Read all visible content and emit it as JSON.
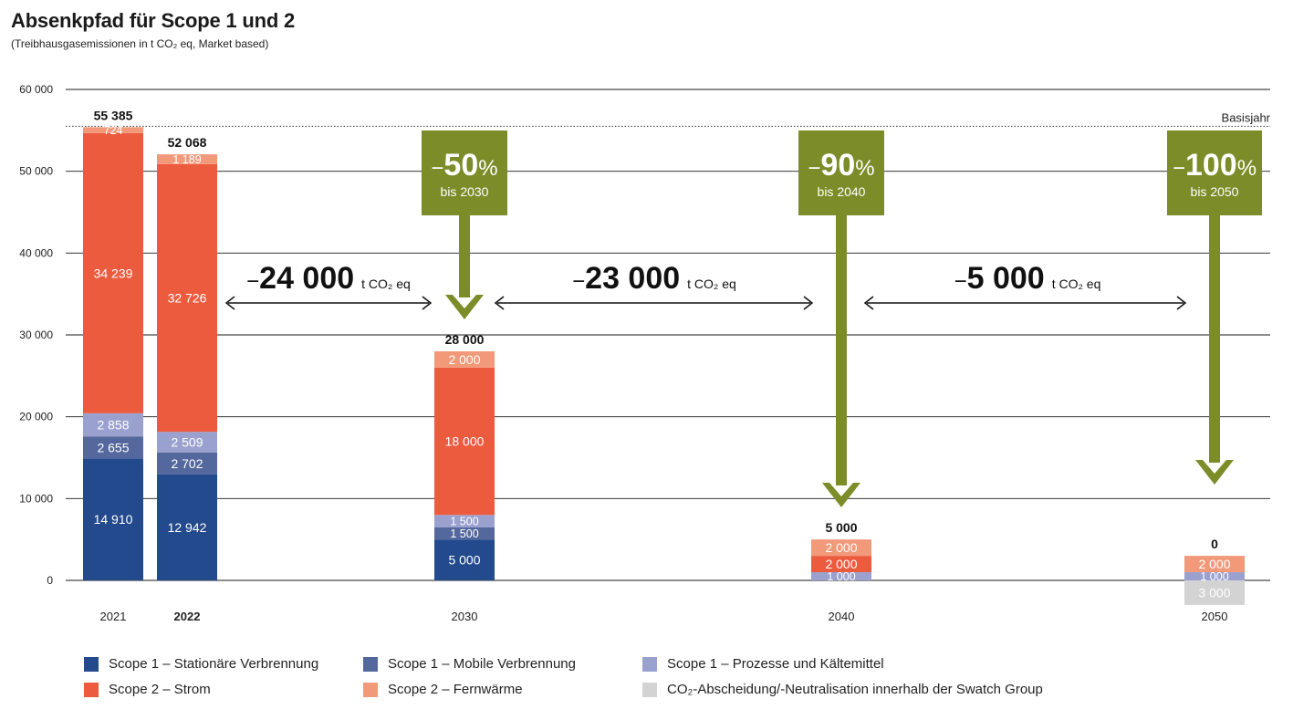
{
  "chart_data": {
    "type": "bar",
    "stacked": true,
    "title": "Absenkpfad für Scope 1 und 2",
    "subtitle": "(Treibhausgasemissionen in t CO₂ eq, Market based)",
    "xlabel": "",
    "ylabel": "",
    "ylim": [
      -3000,
      60000
    ],
    "yticks": [
      0,
      10000,
      20000,
      30000,
      40000,
      50000,
      60000
    ],
    "ytick_labels": [
      "0",
      "10 000",
      "20 000",
      "30 000",
      "40 000",
      "50 000",
      "60 000"
    ],
    "grid": true,
    "legend_position": "bottom",
    "categories": [
      "2021",
      "2022",
      "2030",
      "2040",
      "2050"
    ],
    "highlight_category": "2022",
    "totals": [
      55385,
      52068,
      28000,
      5000,
      0
    ],
    "total_labels": [
      "55 385",
      "52 068",
      "28 000",
      "5 000",
      "0"
    ],
    "series": [
      {
        "name": "Scope 1 – Stationäre Verbrennung",
        "color": "#234a8c",
        "values": [
          14910,
          12942,
          5000,
          0,
          0
        ],
        "labels": [
          "14 910",
          "12 942",
          "5 000",
          "",
          ""
        ]
      },
      {
        "name": "Scope 1 – Mobile Verbrennung",
        "color": "#55689e",
        "values": [
          2655,
          2702,
          1500,
          0,
          0
        ],
        "labels": [
          "2 655",
          "2 702",
          "1 500",
          "",
          ""
        ]
      },
      {
        "name": "Scope 1 – Prozesse und Kältemittel",
        "color": "#9ba1cf",
        "values": [
          2858,
          2509,
          1500,
          1000,
          1000
        ],
        "labels": [
          "2 858",
          "2 509",
          "1 500",
          "1 000",
          "1 000"
        ]
      },
      {
        "name": "Scope 2 – Strom",
        "color": "#ed5b3f",
        "values": [
          34239,
          32726,
          18000,
          2000,
          0
        ],
        "labels": [
          "34 239",
          "32 726",
          "18 000",
          "2 000",
          ""
        ]
      },
      {
        "name": "Scope 2 – Fernwärme",
        "color": "#f2997a",
        "values": [
          724,
          1189,
          2000,
          2000,
          2000
        ],
        "labels": [
          "724",
          "1 189",
          "2 000",
          "2 000",
          "2 000"
        ]
      },
      {
        "name": "CO₂-Abscheidung/-Neutralisation innerhalb der Swatch Group",
        "color": "#d3d3d3",
        "values": [
          0,
          0,
          0,
          0,
          -3000
        ],
        "labels": [
          "",
          "",
          "",
          "",
          "3 000"
        ]
      }
    ],
    "baseline": {
      "value": 55385,
      "label": "Basisjahr"
    },
    "targets": [
      {
        "category": "2030",
        "reduction": "50",
        "percent_sign": "%",
        "minus": "−",
        "by": "bis 2030"
      },
      {
        "category": "2040",
        "reduction": "90",
        "percent_sign": "%",
        "minus": "−",
        "by": "bis 2040"
      },
      {
        "category": "2050",
        "reduction": "100",
        "percent_sign": "%",
        "minus": "−",
        "by": "bis 2050"
      }
    ],
    "reductions": [
      {
        "from": "2022",
        "to": "2030",
        "minus": "−",
        "amount": "24 000",
        "unit": "t CO₂ eq"
      },
      {
        "from": "2030",
        "to": "2040",
        "minus": "−",
        "amount": "23 000",
        "unit": "t CO₂ eq"
      },
      {
        "from": "2040",
        "to": "2050",
        "minus": "−",
        "amount": "5 000",
        "unit": "t CO₂ eq"
      }
    ],
    "colors": {
      "target_green": "#7c8c28",
      "grid": "#1a1a1a"
    }
  }
}
